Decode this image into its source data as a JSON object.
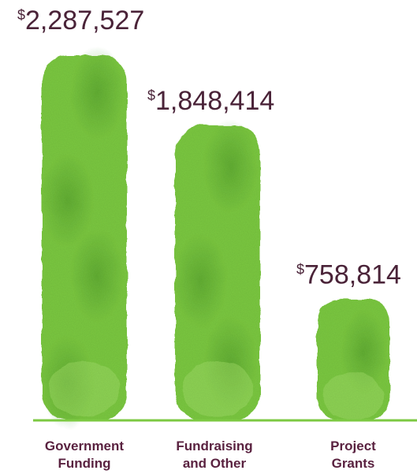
{
  "chart_data": {
    "type": "bar",
    "title": "",
    "xlabel": "",
    "ylabel": "",
    "categories": [
      [
        "Government",
        "Funding"
      ],
      [
        "Fundraising",
        "and Other"
      ],
      [
        "Project",
        "Grants"
      ]
    ],
    "values": [
      2287527,
      1848414,
      758814
    ],
    "value_labels": [
      {
        "currency": "$",
        "amount": "2,287,527"
      },
      {
        "currency": "$",
        "amount": "1,848,414"
      },
      {
        "currency": "$",
        "amount": "758,814"
      }
    ],
    "ylim": [
      0,
      2287527
    ],
    "grid": false,
    "legend": "none",
    "colors": {
      "bar_fill": "#7cc942",
      "bar_dark": "#4f9a2a",
      "bar_light": "#a3df6a",
      "baseline": "#7cc942",
      "value_text": "#4a2338",
      "category_text": "#5a2240"
    }
  }
}
